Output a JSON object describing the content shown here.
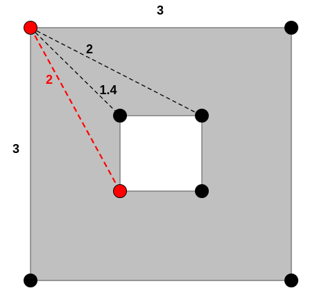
{
  "colors": {
    "outer_fill": "#c0c0c0",
    "outer_stroke": "#7f7f7f",
    "hole_fill": "#ffffff",
    "vertex": "#000000",
    "highlight": "#ff0000",
    "dashed_black": "#000000",
    "dashed_red": "#ff0000",
    "label_black": "#000000",
    "label_red": "#ff0000"
  },
  "labels": {
    "outer_top_side": "3",
    "outer_left_side": "3",
    "dashed_to_hole_top_right": "2",
    "dashed_to_hole_top_left": "1.4",
    "dashed_to_hole_bottom_left": "2"
  },
  "vertices": {
    "outer_top_left": "highlighted",
    "outer_top_right": "normal",
    "outer_bottom_left": "normal",
    "outer_bottom_right": "normal",
    "hole_top_left": "normal",
    "hole_top_right": "normal",
    "hole_bottom_left": "highlighted",
    "hole_bottom_right": "normal"
  }
}
